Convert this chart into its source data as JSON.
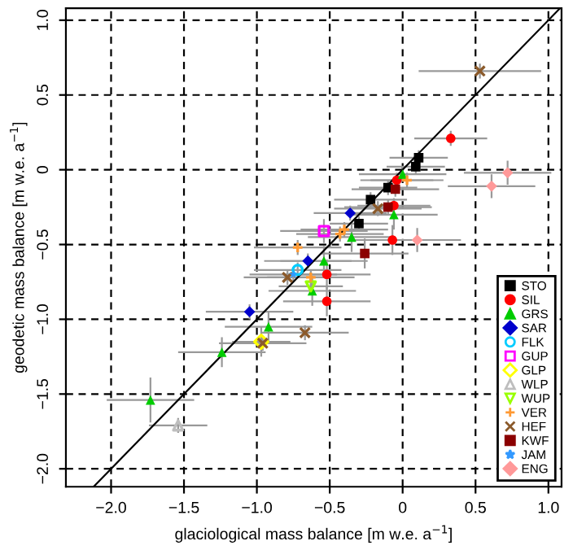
{
  "chart_data": {
    "type": "scatter",
    "xlabel": "glaciological mass balance [m w.e. a$^{−1}$]",
    "ylabel": "geodetic mass balance [m w.e. a$^{−1}$]",
    "xlim": [
      -2.31,
      1.09
    ],
    "ylim": [
      -2.12,
      1.08
    ],
    "xticks": [
      {
        "value": -2.0,
        "label": "−2.0"
      },
      {
        "value": -1.5,
        "label": "−1.5"
      },
      {
        "value": -1.0,
        "label": "−1.0"
      },
      {
        "value": -0.5,
        "label": "−0.5"
      },
      {
        "value": 0.0,
        "label": "0"
      },
      {
        "value": 0.5,
        "label": "0.5"
      },
      {
        "value": 1.0,
        "label": "1.0"
      }
    ],
    "yticks": [
      {
        "value": -2.0,
        "label": "−2.0"
      },
      {
        "value": -1.5,
        "label": "−1.5"
      },
      {
        "value": -1.0,
        "label": "−1.0"
      },
      {
        "value": -0.5,
        "label": "−0.5"
      },
      {
        "value": 0.0,
        "label": "0"
      },
      {
        "value": 0.5,
        "label": "0.5"
      },
      {
        "value": 1.0,
        "label": "1.0"
      }
    ],
    "grid": true,
    "legend": "bottom right",
    "series": [
      {
        "type": "line",
        "color": "#000000",
        "marker": "none",
        "x": [
          -2.12,
          1.08
        ],
        "values": [
          -2.12,
          1.08
        ]
      },
      {
        "name": "STO",
        "color": "#000000",
        "marker": "square",
        "x": [
          0.11,
          0.09,
          -0.1,
          -0.22,
          -0.3
        ],
        "values": [
          0.08,
          0.02,
          -0.12,
          -0.2,
          -0.36
        ],
        "xerrors": [
          0.2,
          0.2,
          0.2,
          0.25,
          0.2
        ],
        "errors": [
          0.05,
          0.05,
          0.05,
          0.05,
          0.05
        ]
      },
      {
        "name": "SIL",
        "color": "#ff0000",
        "marker": "circle",
        "x": [
          0.33,
          -0.04,
          -0.06,
          -0.07,
          -0.52,
          -0.52
        ],
        "values": [
          0.21,
          -0.07,
          -0.24,
          -0.47,
          -0.7,
          -0.88
        ],
        "xerrors": [
          0.25,
          0.25,
          0.25,
          0.3,
          0.3,
          0.3
        ],
        "errors": [
          0.05,
          0.05,
          0.05,
          0.1,
          0.1,
          0.1
        ]
      },
      {
        "name": "GRS",
        "color": "#00cc00",
        "marker": "triangle",
        "x": [
          0.0,
          -0.06,
          -0.35,
          -0.54,
          -0.62,
          -0.92,
          -1.24,
          -1.73
        ],
        "values": [
          -0.03,
          -0.3,
          -0.45,
          -0.61,
          -0.81,
          -1.05,
          -1.22,
          -1.54
        ],
        "xerrors": [
          0.3,
          0.3,
          0.3,
          0.3,
          0.3,
          0.3,
          0.3,
          0.3
        ],
        "errors": [
          0.05,
          0.1,
          0.1,
          0.1,
          0.1,
          0.1,
          0.1,
          0.15
        ]
      },
      {
        "name": "SAR",
        "color": "#0000cc",
        "marker": "diamond",
        "x": [
          -0.36,
          -0.65,
          -1.05
        ],
        "values": [
          -0.29,
          -0.61,
          -0.95
        ],
        "xerrors": [
          0.25,
          0.3,
          0.3
        ],
        "errors": [
          0.05,
          0.05,
          0.05
        ]
      },
      {
        "name": "FLK",
        "color": "#00ccff",
        "marker": "circle_open",
        "x": [
          -0.72
        ],
        "values": [
          -0.67
        ],
        "xerrors": [
          0.3
        ],
        "errors": [
          0.05
        ]
      },
      {
        "name": "GUP",
        "color": "#ff00ff",
        "marker": "square_open",
        "x": [
          -0.54
        ],
        "values": [
          -0.41
        ],
        "xerrors": [
          0.3
        ],
        "errors": [
          0.08
        ]
      },
      {
        "name": "GLP",
        "color": "#ffff00",
        "marker": "diamond_open",
        "x": [
          -0.97
        ],
        "values": [
          -1.15
        ],
        "xerrors": [
          0.2
        ],
        "errors": [
          0.1
        ]
      },
      {
        "name": "WLP",
        "color": "#bebebe",
        "marker": "triangle_open",
        "x": [
          -1.54
        ],
        "values": [
          -1.71
        ],
        "xerrors": [
          0.2
        ],
        "errors": [
          0.05
        ]
      },
      {
        "name": "WUP",
        "color": "#99ff00",
        "marker": "triangle_down_open",
        "x": [
          -0.63
        ],
        "values": [
          -0.78
        ],
        "xerrors": [
          0.22
        ],
        "errors": [
          0.05
        ]
      },
      {
        "name": "VER",
        "color": "#ff9933",
        "marker": "plus",
        "x": [
          0.03,
          -0.4,
          -0.43,
          -0.72,
          -0.63
        ],
        "values": [
          -0.07,
          -0.4,
          -0.43,
          -0.52,
          -0.72
        ],
        "xerrors": [
          0.25,
          0.3,
          0.3,
          0.3,
          0.3
        ],
        "errors": [
          0.05,
          0.05,
          0.05,
          0.05,
          0.05
        ]
      },
      {
        "name": "HEF",
        "color": "#8b5a2b",
        "marker": "cross",
        "x": [
          0.53,
          -0.17,
          -0.79,
          -0.67,
          -0.96
        ],
        "values": [
          0.66,
          -0.26,
          -0.72,
          -1.09,
          -1.16
        ],
        "xerrors": [
          0.42,
          0.3,
          0.3,
          0.3,
          0.3
        ],
        "errors": [
          0.05,
          0.05,
          0.05,
          0.05,
          0.05
        ]
      },
      {
        "name": "KWF",
        "color": "#8b0000",
        "marker": "square",
        "x": [
          -0.05,
          -0.1,
          -0.26
        ],
        "values": [
          -0.13,
          -0.25,
          -0.56
        ],
        "xerrors": [
          0.3,
          0.3,
          0.3
        ],
        "errors": [
          0.05,
          0.05,
          0.1
        ]
      },
      {
        "name": "JAM",
        "color": "#3399ff",
        "marker": "star",
        "x": [
          -0.75
        ],
        "values": [
          -0.7
        ],
        "xerrors": [
          0.3
        ],
        "errors": [
          0.05
        ]
      },
      {
        "name": "ENG",
        "color": "#ff9999",
        "marker": "diamond",
        "x": [
          0.72,
          0.61,
          0.1
        ],
        "values": [
          -0.02,
          -0.11,
          -0.47
        ],
        "xerrors": [
          0.3,
          0.3,
          0.3
        ],
        "errors": [
          0.08,
          0.08,
          0.08
        ]
      }
    ]
  }
}
